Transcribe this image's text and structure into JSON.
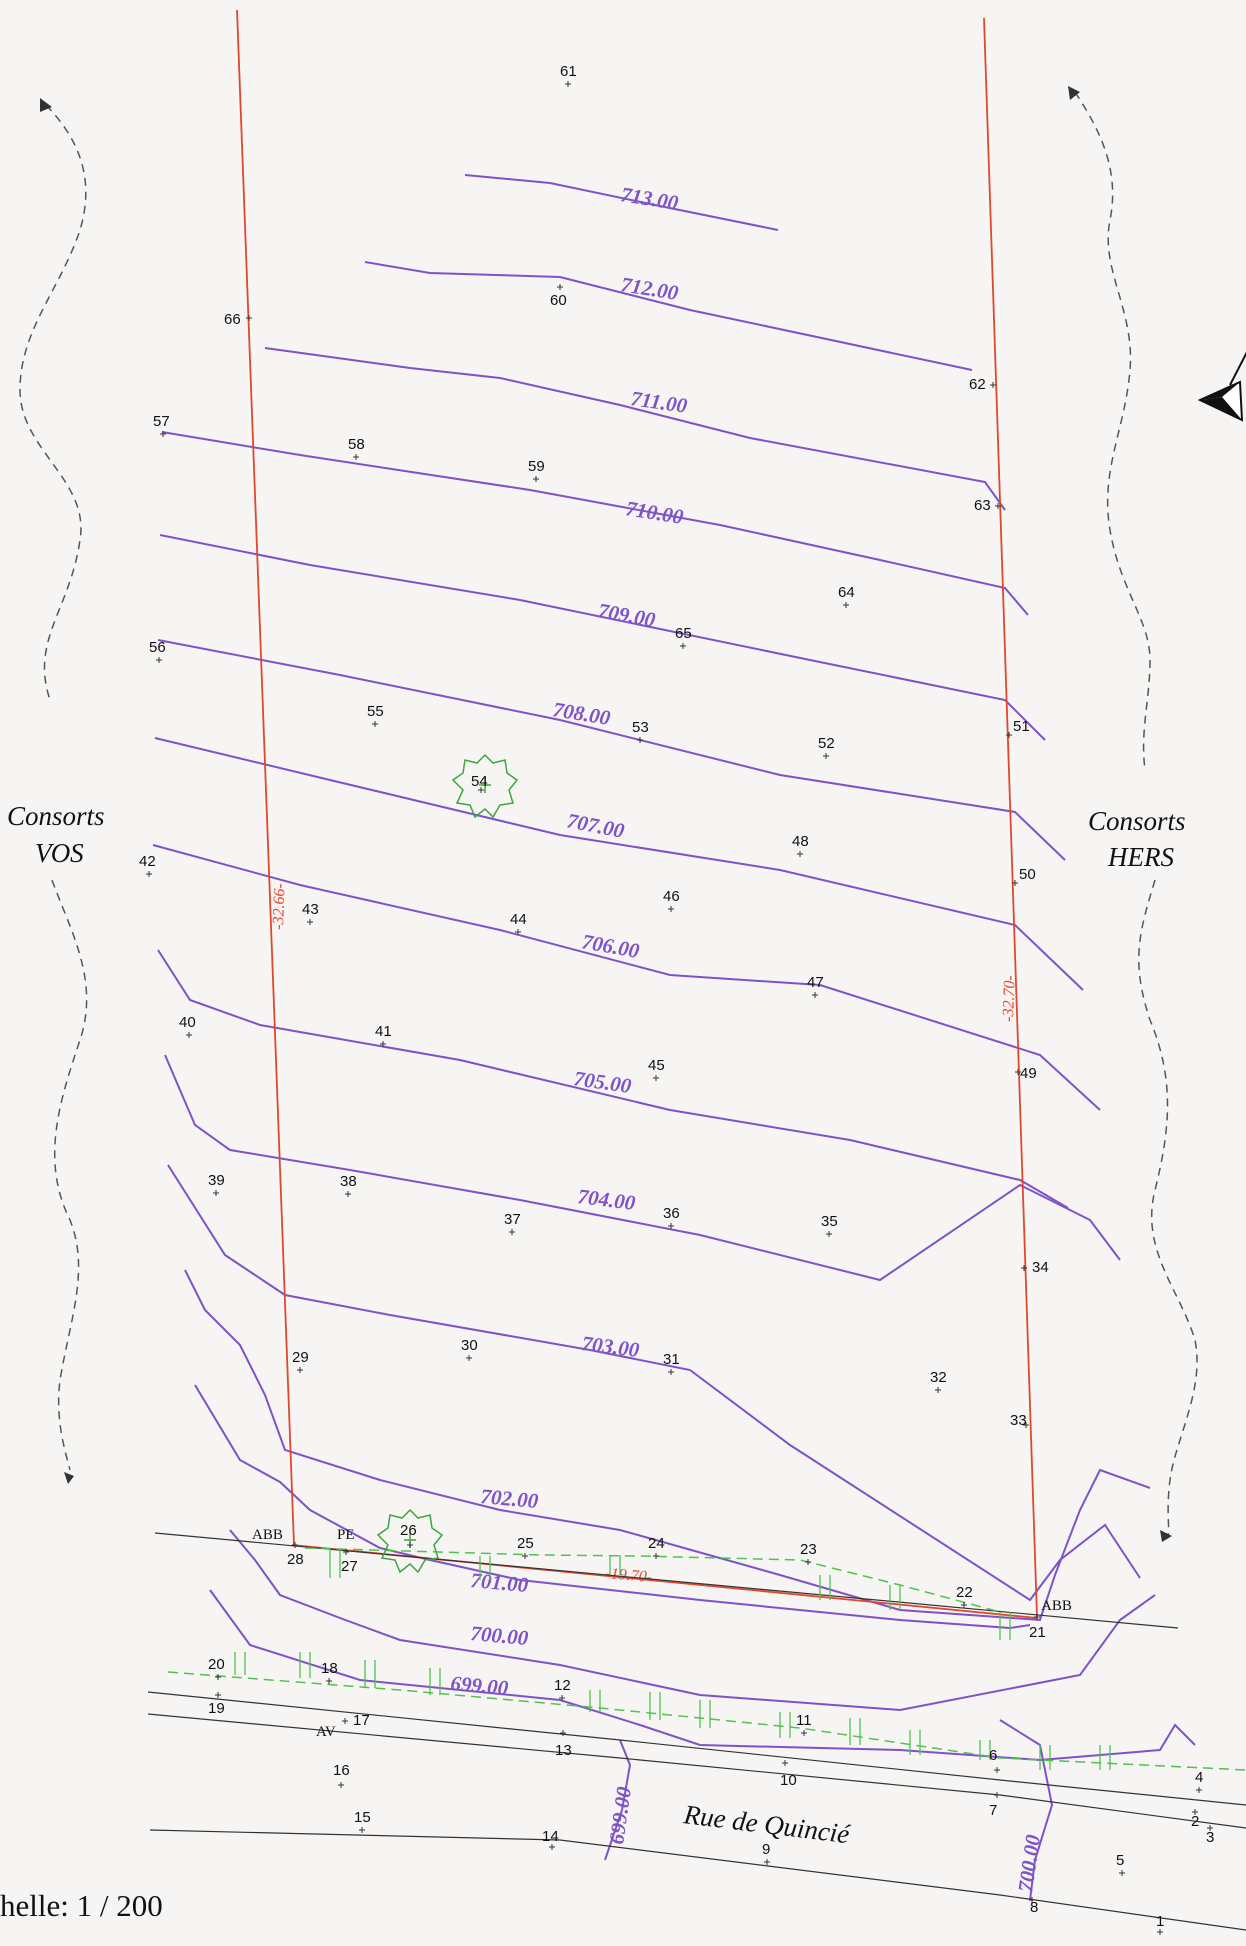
{
  "map": {
    "scale_text": "helle: 1 / 200",
    "street_name": "Rue de Quincié",
    "neighbor_left": [
      "Consorts",
      "VOS"
    ],
    "neighbor_right": [
      "Consorts",
      "HERS"
    ],
    "contours": [
      {
        "label": "713.00"
      },
      {
        "label": "712.00"
      },
      {
        "label": "711.00"
      },
      {
        "label": "710.00"
      },
      {
        "label": "709.00"
      },
      {
        "label": "708.00"
      },
      {
        "label": "707.00"
      },
      {
        "label": "706.00"
      },
      {
        "label": "705.00"
      },
      {
        "label": "704.00"
      },
      {
        "label": "703.00"
      },
      {
        "label": "702.00"
      },
      {
        "label": "701.00"
      },
      {
        "label": "700.00"
      },
      {
        "label": "699.00"
      }
    ],
    "road_contour_labels": [
      "699.00",
      "700.00"
    ],
    "dimensions": {
      "left": "-32.66-",
      "right": "-32.70-",
      "front": "-19.70-"
    },
    "abbreviations": {
      "corner_left": "ABB",
      "corner_right": "ABB",
      "pe": "PE",
      "av": "AV"
    },
    "survey_points": [
      "1",
      "2",
      "3",
      "4",
      "5",
      "6",
      "7",
      "8",
      "9",
      "10",
      "11",
      "12",
      "13",
      "14",
      "15",
      "16",
      "17",
      "18",
      "19",
      "20",
      "21",
      "22",
      "23",
      "24",
      "25",
      "26",
      "27",
      "28",
      "29",
      "30",
      "31",
      "32",
      "33",
      "34",
      "35",
      "36",
      "37",
      "38",
      "39",
      "40",
      "41",
      "42",
      "43",
      "44",
      "45",
      "46",
      "47",
      "48",
      "49",
      "50",
      "51",
      "52",
      "53",
      "54",
      "55",
      "56",
      "57",
      "58",
      "59",
      "60",
      "61",
      "62",
      "63",
      "64",
      "65",
      "66"
    ],
    "colors": {
      "contour": "#7e52c8",
      "boundary": "#e0472e",
      "hedge": "#4fc34f",
      "ink": "#111111"
    },
    "icons": [
      "north-arrow-icon",
      "tree-icon"
    ]
  }
}
